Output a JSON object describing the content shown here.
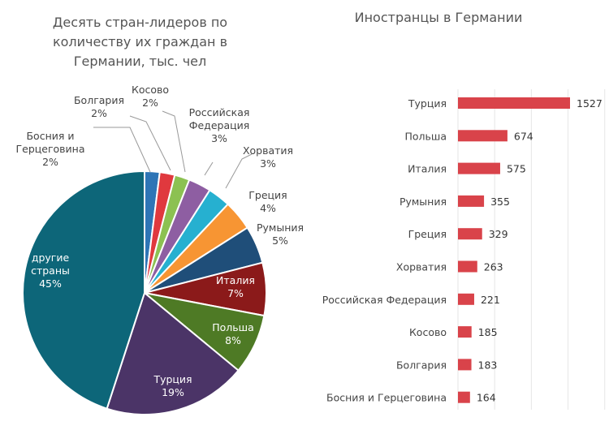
{
  "chart_data": [
    {
      "type": "pie",
      "title": "Десять стран-лидеров по количеству их граждан в Германии, тыс. чел",
      "title_lines": [
        "Десять стран-лидеров по",
        "количеству их граждан в",
        "Германии, тыс. чел"
      ],
      "slices": [
        {
          "label": "Босния и Герцеговина",
          "lines": [
            "Босния и",
            "Герцеговина"
          ],
          "pct_label": "2%",
          "value": 2,
          "color": "#2e75b6"
        },
        {
          "label": "Болгария",
          "lines": [
            "Болгария"
          ],
          "pct_label": "2%",
          "value": 2,
          "color": "#e0393e"
        },
        {
          "label": "Косово",
          "lines": [
            "Косово"
          ],
          "pct_label": "2%",
          "value": 2,
          "color": "#8cc152"
        },
        {
          "label": "Российская Федерация",
          "lines": [
            "Российская",
            "Федерация"
          ],
          "pct_label": "3%",
          "value": 3,
          "color": "#8e5ea2"
        },
        {
          "label": "Хорватия",
          "lines": [
            "Хорватия"
          ],
          "pct_label": "3%",
          "value": 3,
          "color": "#26b0d0"
        },
        {
          "label": "Греция",
          "lines": [
            "Греция"
          ],
          "pct_label": "4%",
          "value": 4,
          "color": "#f79533"
        },
        {
          "label": "Румыния",
          "lines": [
            "Румыния"
          ],
          "pct_label": "5%",
          "value": 5,
          "color": "#1f4e79"
        },
        {
          "label": "Италия",
          "lines": [
            "Италия"
          ],
          "pct_label": "7%",
          "value": 7,
          "color": "#8b1a1a"
        },
        {
          "label": "Польша",
          "lines": [
            "Польша"
          ],
          "pct_label": "8%",
          "value": 8,
          "color": "#4e7a25"
        },
        {
          "label": "Турция",
          "lines": [
            "Турция"
          ],
          "pct_label": "19%",
          "value": 19,
          "color": "#4b3467"
        },
        {
          "label": "другие страны",
          "lines": [
            "другие",
            "страны"
          ],
          "pct_label": "45%",
          "value": 45,
          "color": "#0d6679"
        }
      ]
    },
    {
      "type": "bar",
      "orientation": "horizontal",
      "title": "Иностранцы в Германии",
      "categories": [
        "Турция",
        "Польша",
        "Италия",
        "Румыния",
        "Греция",
        "Хорватия",
        "Российская Федерация",
        "Косово",
        "Болгария",
        "Босния и Герцеговина"
      ],
      "values": [
        1527,
        674,
        575,
        355,
        329,
        263,
        221,
        185,
        183,
        164
      ],
      "xlim": [
        0,
        2000
      ],
      "grid": true,
      "color": "#d9434a"
    }
  ]
}
